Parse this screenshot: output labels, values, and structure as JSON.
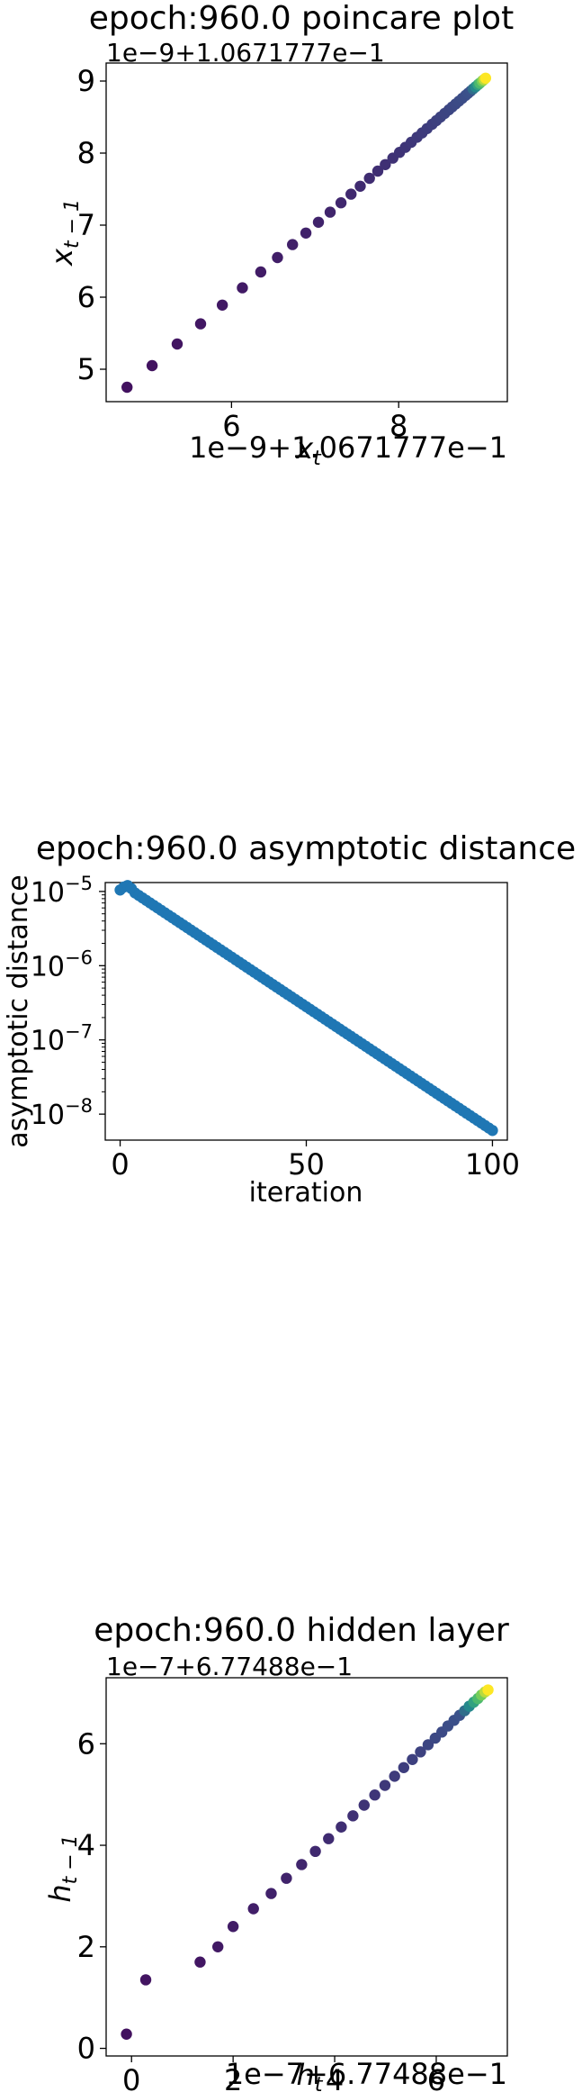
{
  "chart_data": [
    {
      "type": "scatter",
      "title": "epoch:960.0 poincare plot",
      "xlabel": "$x_t$",
      "ylabel": "$x_{t-1}$",
      "x_offset_label": "1e−9+1.0671777e−1",
      "y_offset_label": "1e−9+1.0671777e−1",
      "xlim": [
        4.5,
        9.3
      ],
      "ylim": [
        4.55,
        9.25
      ],
      "xticks": [
        "6",
        "8"
      ],
      "yticks": [
        "5",
        "6",
        "7",
        "8",
        "9"
      ],
      "xtick_values": [
        6,
        8
      ],
      "ytick_values": [
        5,
        6,
        7,
        8,
        9
      ],
      "colormap": [
        "#440154",
        "#3b528b",
        "#21918c",
        "#5ec962",
        "#fde725"
      ],
      "points": [
        [
          4.75,
          4.75
        ],
        [
          5.05,
          5.05
        ],
        [
          5.35,
          5.35
        ],
        [
          5.63,
          5.63
        ],
        [
          5.89,
          5.89
        ],
        [
          6.13,
          6.13
        ],
        [
          6.35,
          6.35
        ],
        [
          6.55,
          6.55
        ],
        [
          6.73,
          6.73
        ],
        [
          6.89,
          6.89
        ],
        [
          7.04,
          7.04
        ],
        [
          7.18,
          7.18
        ],
        [
          7.31,
          7.31
        ],
        [
          7.43,
          7.43
        ],
        [
          7.54,
          7.54
        ],
        [
          7.65,
          7.65
        ],
        [
          7.75,
          7.75
        ],
        [
          7.84,
          7.84
        ],
        [
          7.93,
          7.93
        ],
        [
          8.01,
          8.01
        ],
        [
          8.08,
          8.08
        ],
        [
          8.15,
          8.15
        ],
        [
          8.22,
          8.22
        ],
        [
          8.28,
          8.28
        ],
        [
          8.34,
          8.34
        ],
        [
          8.4,
          8.4
        ],
        [
          8.45,
          8.45
        ],
        [
          8.5,
          8.5
        ],
        [
          8.55,
          8.55
        ],
        [
          8.6,
          8.6
        ],
        [
          8.64,
          8.64
        ],
        [
          8.68,
          8.68
        ],
        [
          8.72,
          8.72
        ],
        [
          8.76,
          8.76
        ],
        [
          8.8,
          8.8
        ],
        [
          8.83,
          8.83
        ],
        [
          8.86,
          8.86
        ],
        [
          8.89,
          8.89
        ],
        [
          8.92,
          8.92
        ],
        [
          8.95,
          8.95
        ],
        [
          8.97,
          8.97
        ],
        [
          9.0,
          9.0
        ],
        [
          9.02,
          9.02
        ],
        [
          9.04,
          9.04
        ]
      ]
    },
    {
      "type": "scatter",
      "title": "epoch:960.0 asymptotic distance",
      "xlabel": "iteration",
      "ylabel": "asymptotic distance",
      "yscale": "log",
      "xlim": [
        -4,
        104
      ],
      "ylim_log10": [
        -8.35,
        -4.88
      ],
      "xticks": [
        "0",
        "50",
        "100"
      ],
      "xtick_values": [
        0,
        50,
        100
      ],
      "yticks": [
        "10",
        "10",
        "10",
        "10"
      ],
      "yticks_exp": [
        "−5",
        "−6",
        "−7",
        "−8"
      ],
      "ytick_log10": [
        -5,
        -6,
        -7,
        -8
      ],
      "color": "#1f77b4",
      "log10_start": [
        -4.98,
        -4.94,
        -4.92,
        -4.96,
        -5.02
      ],
      "log10_slope": -0.0275,
      "log10_at_100": -8.22,
      "n_points": 101
    },
    {
      "type": "scatter",
      "title": "epoch:960.0 hidden layer",
      "xlabel": "$h_t$",
      "ylabel": "$h_{t-1}$",
      "x_offset_label": "1e−7+6.77488e−1",
      "y_offset_label": "1e−7+6.77488e−1",
      "xlim": [
        -0.5,
        7.4
      ],
      "ylim": [
        -0.15,
        7.3
      ],
      "xticks": [
        "0",
        "2",
        "4",
        "6"
      ],
      "yticks": [
        "0",
        "2",
        "4",
        "6"
      ],
      "xtick_values": [
        0,
        2,
        4,
        6
      ],
      "ytick_values": [
        0,
        2,
        4,
        6
      ],
      "colormap": [
        "#440154",
        "#3b528b",
        "#21918c",
        "#5ec962",
        "#fde725"
      ],
      "points": [
        [
          -0.1,
          0.28
        ],
        [
          0.28,
          1.35
        ],
        [
          1.35,
          1.7
        ],
        [
          1.7,
          2.0
        ],
        [
          2.0,
          2.4
        ],
        [
          2.4,
          2.75
        ],
        [
          2.75,
          3.05
        ],
        [
          3.05,
          3.35
        ],
        [
          3.35,
          3.62
        ],
        [
          3.62,
          3.88
        ],
        [
          3.88,
          4.13
        ],
        [
          4.13,
          4.36
        ],
        [
          4.36,
          4.58
        ],
        [
          4.58,
          4.79
        ],
        [
          4.79,
          4.99
        ],
        [
          4.99,
          5.18
        ],
        [
          5.18,
          5.36
        ],
        [
          5.36,
          5.53
        ],
        [
          5.53,
          5.69
        ],
        [
          5.69,
          5.84
        ],
        [
          5.84,
          5.98
        ],
        [
          5.98,
          6.11
        ],
        [
          6.11,
          6.23
        ],
        [
          6.23,
          6.35
        ],
        [
          6.35,
          6.46
        ],
        [
          6.46,
          6.56
        ],
        [
          6.56,
          6.65
        ],
        [
          6.65,
          6.74
        ],
        [
          6.74,
          6.82
        ],
        [
          6.82,
          6.89
        ],
        [
          6.89,
          6.96
        ],
        [
          6.96,
          7.02
        ],
        [
          7.02,
          7.06
        ]
      ]
    }
  ]
}
